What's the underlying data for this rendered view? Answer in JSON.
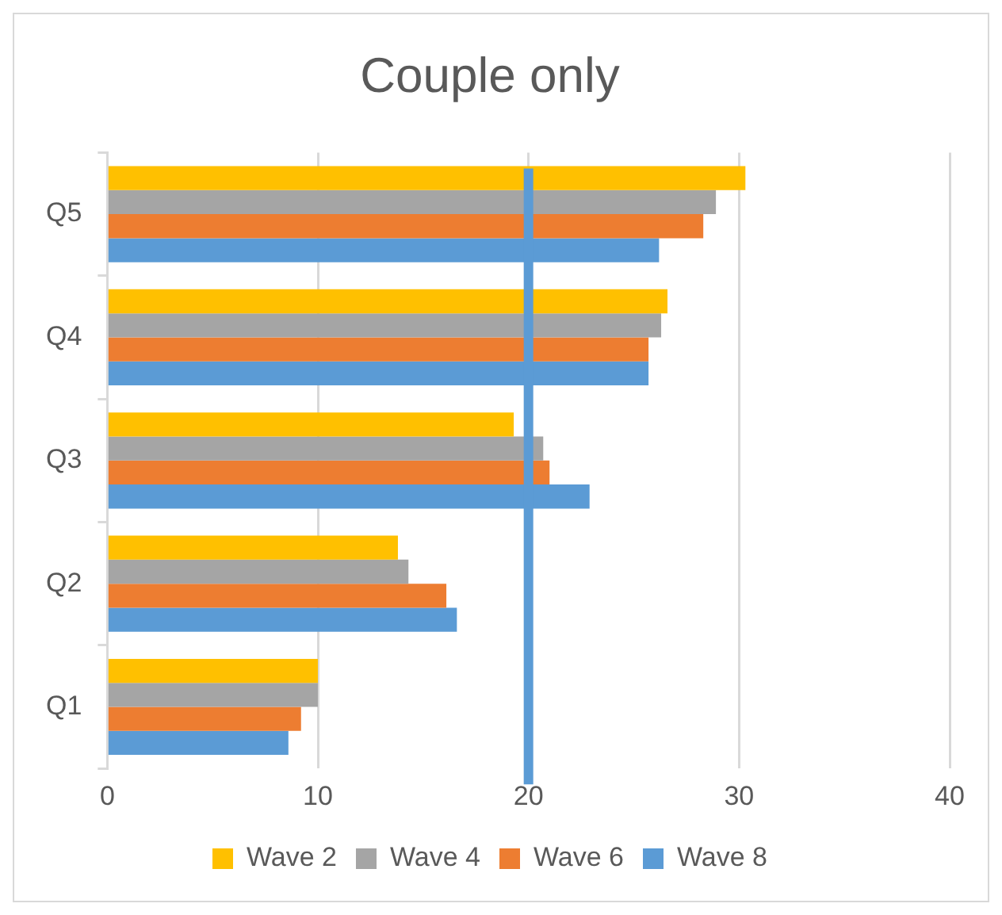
{
  "chart_data": {
    "type": "bar",
    "orientation": "horizontal",
    "title": "Couple only",
    "categories": [
      "Q5",
      "Q4",
      "Q3",
      "Q2",
      "Q1"
    ],
    "series": [
      {
        "name": "Wave 2",
        "color": "#ffc000",
        "values": [
          30.3,
          26.6,
          19.3,
          13.8,
          10.0
        ]
      },
      {
        "name": "Wave 4",
        "color": "#a5a5a5",
        "values": [
          28.9,
          26.3,
          20.7,
          14.3,
          10.0
        ]
      },
      {
        "name": "Wave 6",
        "color": "#ed7d31",
        "values": [
          28.3,
          25.7,
          21.0,
          16.1,
          9.2
        ]
      },
      {
        "name": "Wave 8",
        "color": "#5b9bd5",
        "values": [
          26.2,
          25.7,
          22.9,
          16.6,
          8.6
        ]
      }
    ],
    "xlim": [
      0,
      40
    ],
    "xticks": [
      0,
      10,
      20,
      30,
      40
    ],
    "grid": "x",
    "legend": "bottom",
    "ref_lines": [
      {
        "axis": "x",
        "value": 20,
        "color": "#5b9bd5"
      }
    ]
  }
}
